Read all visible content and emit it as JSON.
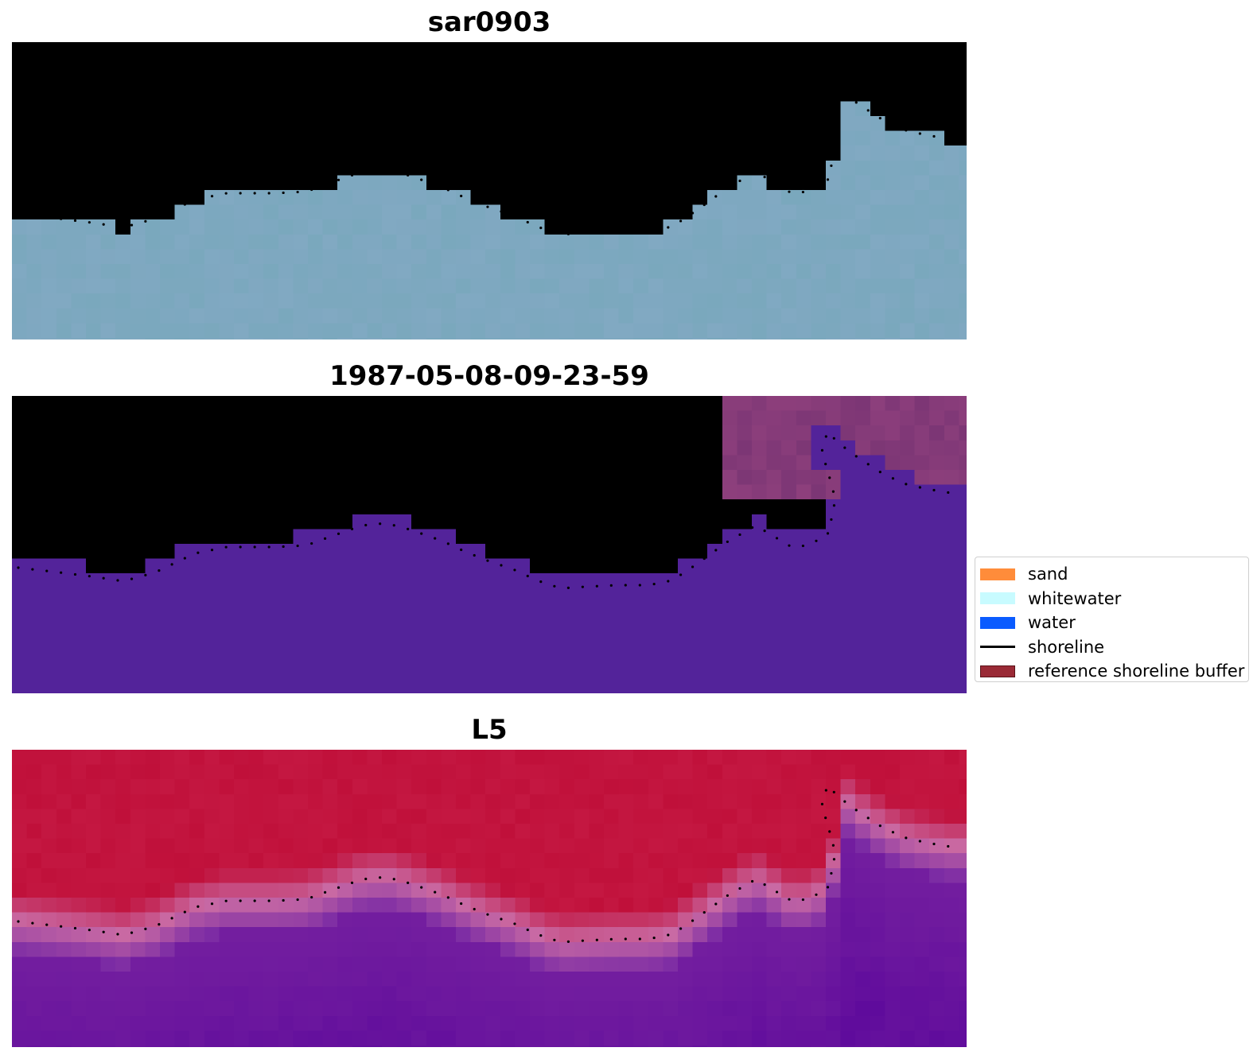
{
  "panels": [
    {
      "title": "sar0903"
    },
    {
      "title": "1987-05-08-09-23-59"
    },
    {
      "title": "L5"
    }
  ],
  "legend": {
    "items": [
      {
        "label": "sand",
        "kind": "patch",
        "color": "#ff8c3a"
      },
      {
        "label": "whitewater",
        "kind": "patch",
        "color": "#c8fbff"
      },
      {
        "label": "water",
        "kind": "patch",
        "color": "#0a5bff"
      },
      {
        "label": "shoreline",
        "kind": "line",
        "color": "#000000"
      },
      {
        "label": "reference shoreline buffer",
        "kind": "patch",
        "color": "#9a2a36"
      }
    ]
  },
  "colors": {
    "sar_water": "#7aa8bd",
    "sar_land": "#a8c4d6",
    "sar_bright": "#f4f5f6",
    "classified_water": "#53239a",
    "classified_land": "#a2558d",
    "probability_land": "#c0103a",
    "probability_water": "#5e0a9c",
    "shoreline_dots": "#000000"
  }
}
